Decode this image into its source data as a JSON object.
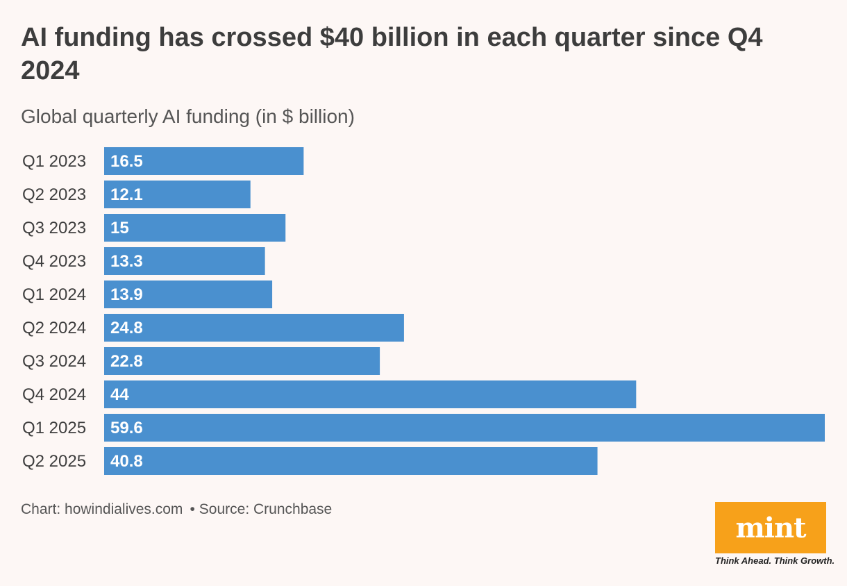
{
  "title": "AI funding has crossed $40 billion in each quarter since Q4 2024",
  "subtitle": "Global quarterly AI funding (in $ billion)",
  "chart_data": {
    "type": "bar",
    "orientation": "horizontal",
    "title": "AI funding has crossed $40 billion in each quarter since Q4 2024",
    "subtitle": "Global quarterly AI funding (in $ billion)",
    "categories": [
      "Q1 2023",
      "Q2 2023",
      "Q3 2023",
      "Q4 2023",
      "Q1 2024",
      "Q2 2024",
      "Q3 2024",
      "Q4 2024",
      "Q1 2025",
      "Q2 2025"
    ],
    "values": [
      16.5,
      12.1,
      15,
      13.3,
      13.9,
      24.8,
      22.8,
      44,
      59.6,
      40.8
    ],
    "value_labels": [
      "16.5",
      "12.1",
      "15",
      "13.3",
      "13.9",
      "24.8",
      "22.8",
      "44",
      "59.6",
      "40.8"
    ],
    "xlabel": "",
    "ylabel": "",
    "xlim": [
      0,
      59.6
    ],
    "grid": false,
    "bar_color": "#4a90cf"
  },
  "footer": {
    "chart_credit": "Chart: howindialives.com",
    "separator": "•",
    "source": "Source: Crunchbase"
  },
  "logo": {
    "name": "mint",
    "tagline": "Think Ahead. Think Growth.",
    "color": "#f7a11a"
  }
}
